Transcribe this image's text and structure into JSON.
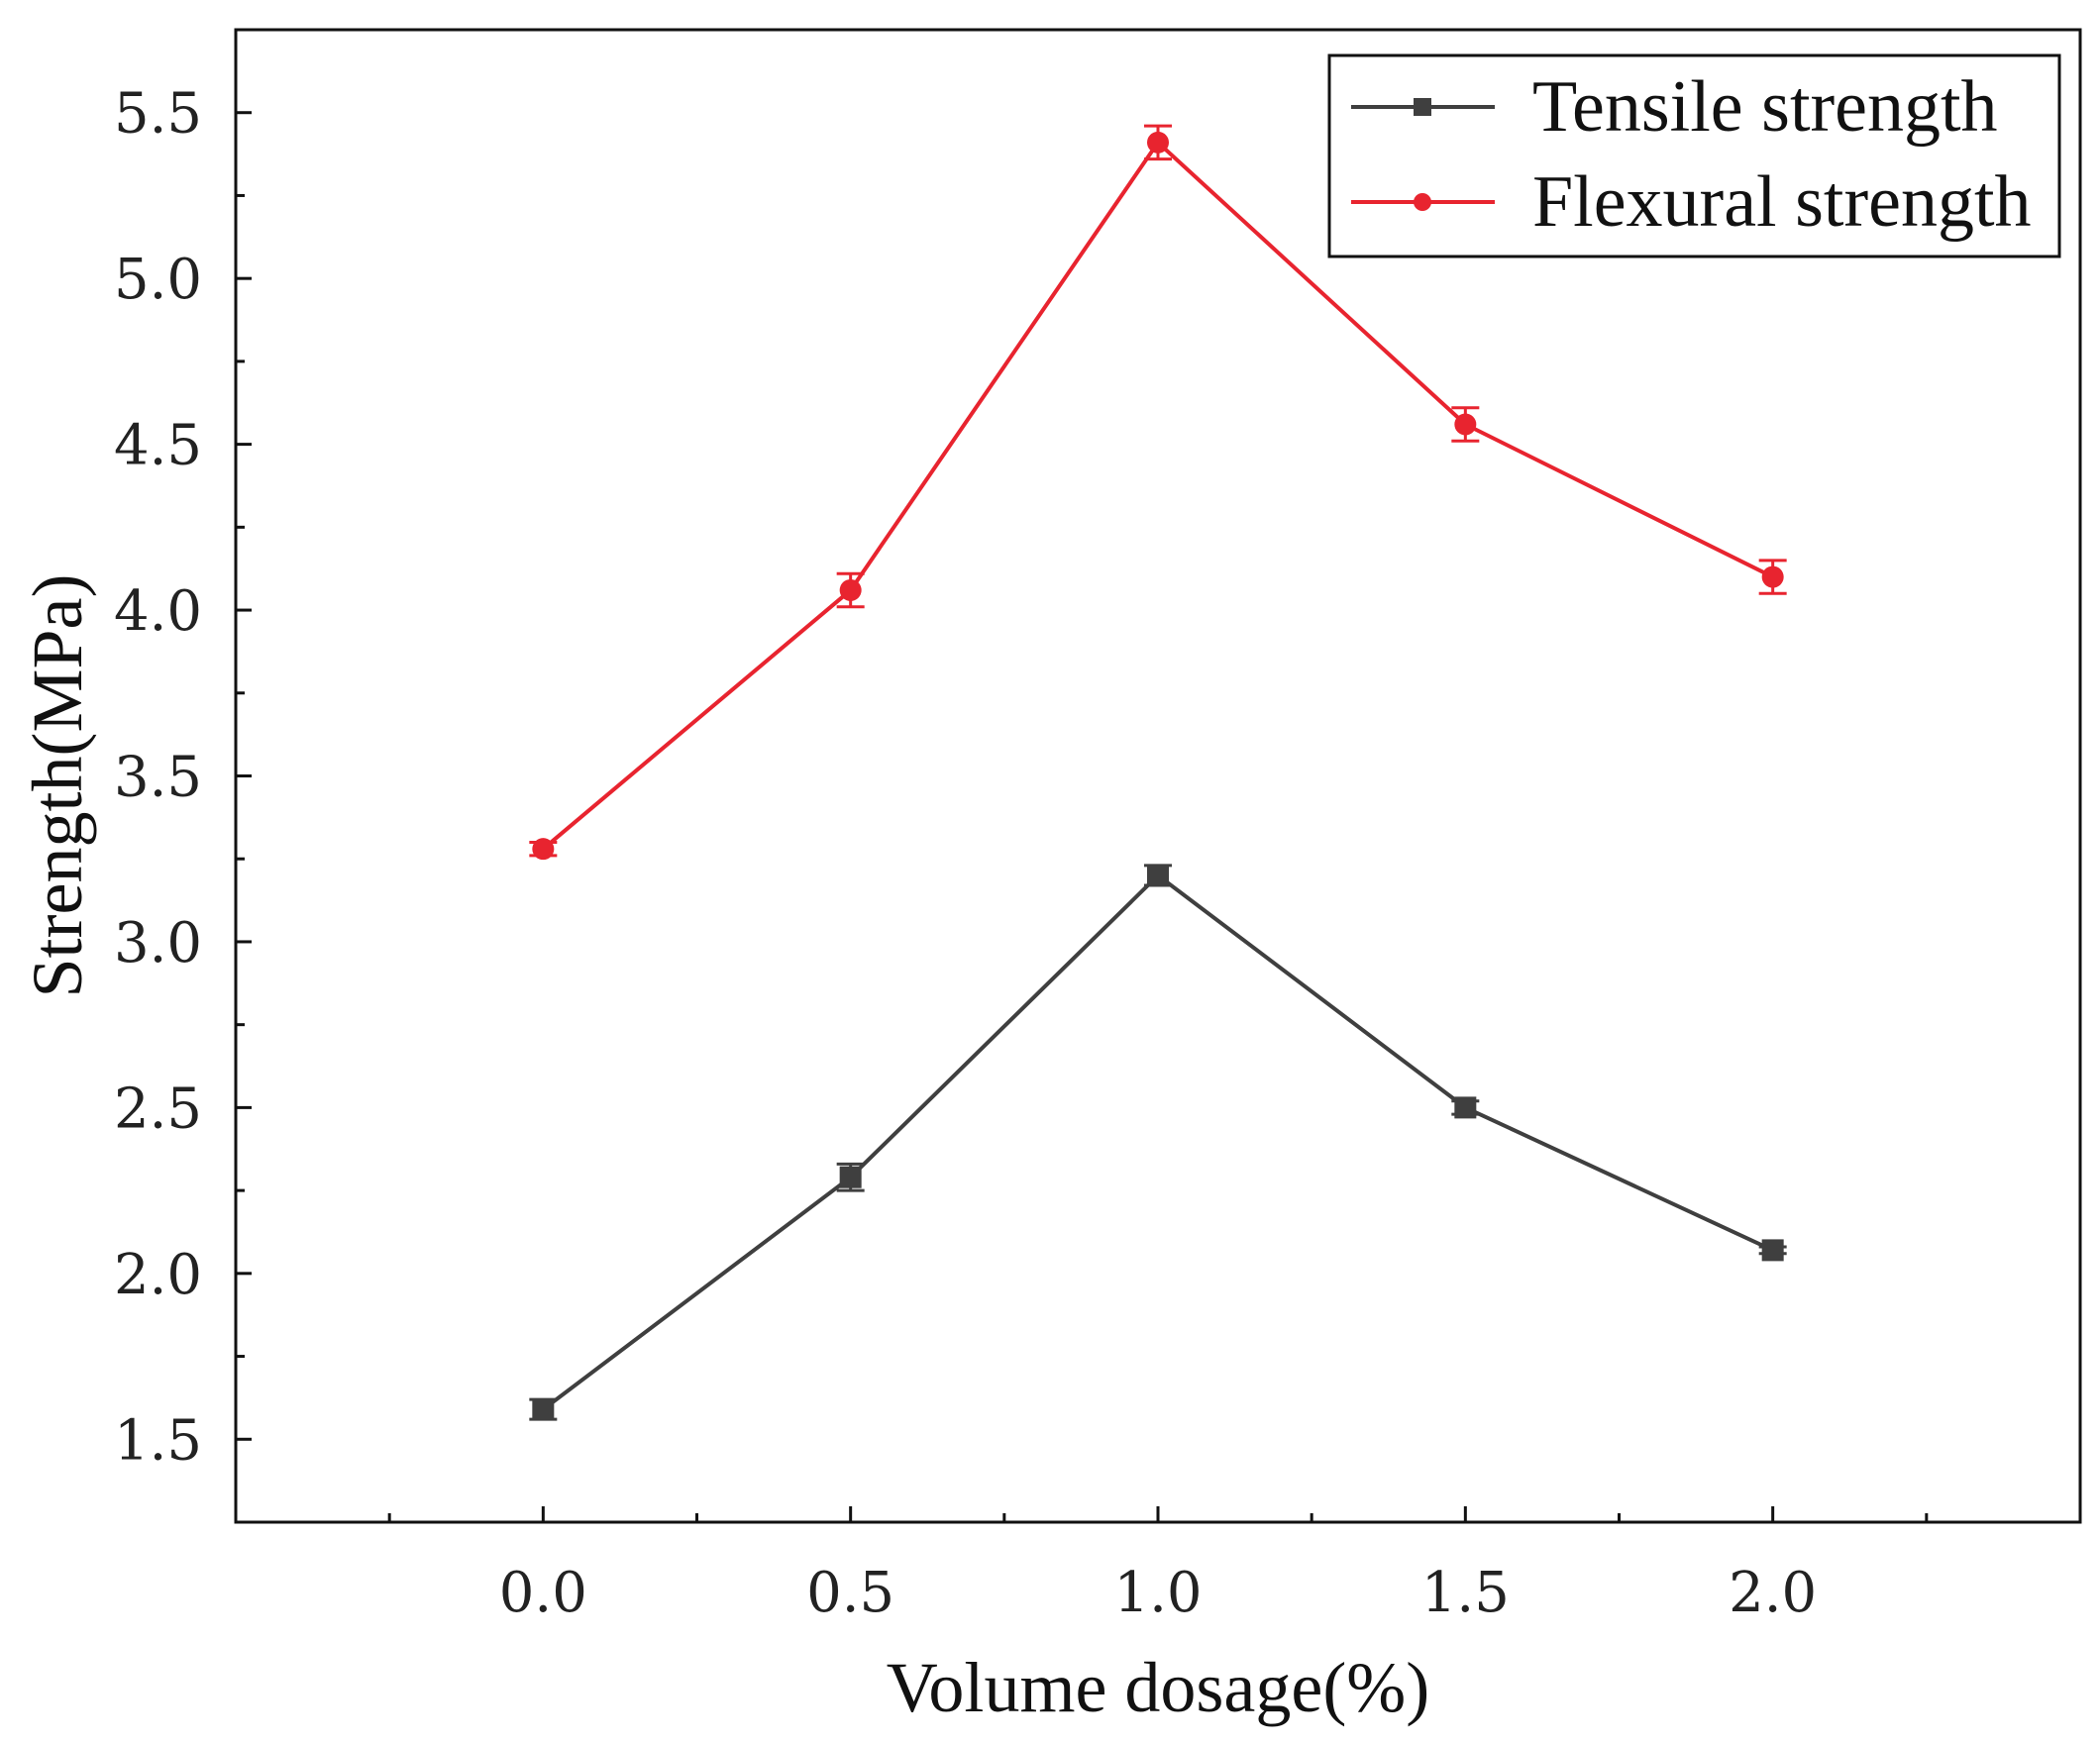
{
  "chart_data": {
    "type": "line",
    "title": "",
    "xlabel": "Volume dosage(%)",
    "ylabel": "Strength(MPa)",
    "xlim": [
      -0.5,
      2.5
    ],
    "ylim": [
      1.25,
      5.75
    ],
    "x_ticks": [
      0.0,
      0.5,
      1.0,
      1.5,
      2.0
    ],
    "x_tick_labels": [
      "0.0",
      "0.5",
      "1.0",
      "1.5",
      "2.0"
    ],
    "y_ticks": [
      1.5,
      2.0,
      2.5,
      3.0,
      3.5,
      4.0,
      4.5,
      5.0,
      5.5
    ],
    "y_tick_labels": [
      "1.5",
      "2.0",
      "2.5",
      "3.0",
      "3.5",
      "4.0",
      "4.5",
      "5.0",
      "5.5"
    ],
    "grid": false,
    "legend_position": "top-right",
    "x": [
      0.0,
      0.5,
      1.0,
      1.5,
      2.0
    ],
    "series": [
      {
        "name": "Tensile strength",
        "values": [
          1.59,
          2.29,
          3.2,
          2.5,
          2.07
        ],
        "errors": [
          0.03,
          0.04,
          0.03,
          0.02,
          0.01
        ],
        "color": "#3f3f3f",
        "marker": "square"
      },
      {
        "name": "Flexural strength",
        "values": [
          3.28,
          4.06,
          5.41,
          4.56,
          4.1
        ],
        "errors": [
          0.02,
          0.05,
          0.05,
          0.05,
          0.05
        ],
        "color": "#e8242f",
        "marker": "circle"
      }
    ]
  }
}
